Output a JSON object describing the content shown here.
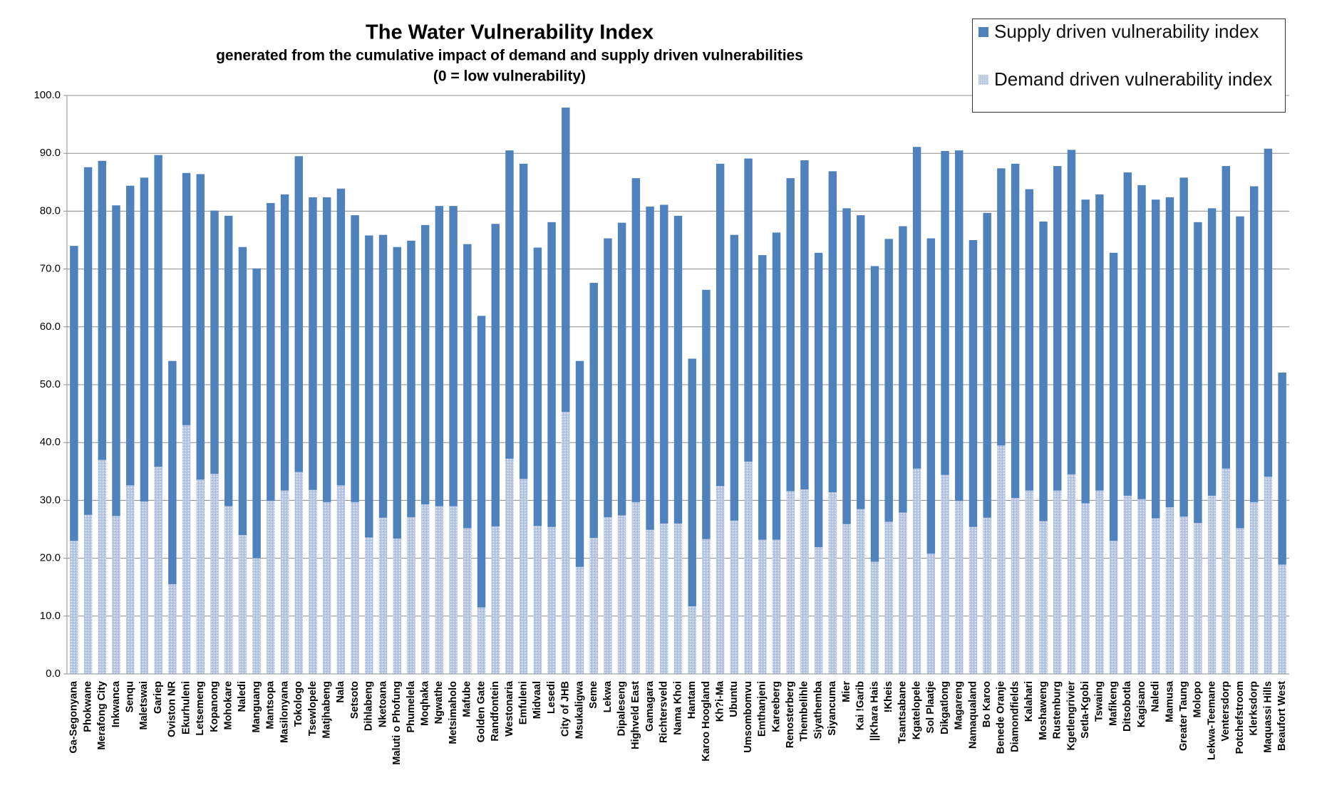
{
  "chart_data": {
    "type": "stacked_bar",
    "title": "The Water Vulnerability Index",
    "subtitle": "generated from the cumulative impact of demand and supply driven vulnerabilities",
    "note": "(0 = low vulnerability)",
    "categories": [
      "Ga-Segonyana",
      "Phokwane",
      "Merafong City",
      "Inkwanca",
      "Senqu",
      "Maletswai",
      "Gariep",
      "Oviston NR",
      "Ekurhuleni",
      "Letsemeng",
      "Kopanong",
      "Mohokare",
      "Naledi",
      "Manguang",
      "Mantsopa",
      "Masilonyana",
      "Tokologo",
      "Tsewlopele",
      "Matjhabeng",
      "Nala",
      "Setsoto",
      "Dihlabeng",
      "Nketoana",
      "Maluti o Phofung",
      "Phumelela",
      "Moqhaka",
      "Ngwathe",
      "Metsimaholo",
      "Mafube",
      "Golden Gate",
      "Randfontein",
      "Westonaria",
      "Emfuleni",
      "Midvaal",
      "Lesedi",
      "City of JHB",
      "Msukaligwa",
      "Seme",
      "Lekwa",
      "Dipaleseng",
      "Highveld East",
      "Gamagara",
      "Richtersveld",
      "Nama Khoi",
      "Hantam",
      "Karoo Hoogland",
      "Kh?i-Ma",
      "Ubuntu",
      "Umsombomvu",
      "Emthanjeni",
      "Kareeberg",
      "Renosterberg",
      "Thembelihle",
      "Siyathemba",
      "Siyancuma",
      "Mier",
      "Kai !Garib",
      "||Khara Hais",
      "!Kheis",
      "Tsantsabane",
      "Kgatelopele",
      "Sol Plaatje",
      "Dikgatlong",
      "Magareng",
      "Namaqualand",
      "Bo Karoo",
      "Benede Oranje",
      "Diamondfields",
      "Kalahari",
      "Moshaweng",
      "Rustenburg",
      "Kgetlengrivier",
      "Setla-Kgobi",
      "Tswaing",
      "Mafikeng",
      "Ditsobotla",
      "Kagisano",
      "Naledi",
      "Mamusa",
      "Greater Taung",
      "Molopo",
      "Lekwa-Teemane",
      "Ventersdorp",
      "Potchefstroom",
      "Klerksdorp",
      "Maquassi Hills",
      "Beaufort West"
    ],
    "series": [
      {
        "name": "Supply driven vulnerability index",
        "color": "#4f81bd",
        "values": [
          51.0,
          60.1,
          51.7,
          53.7,
          51.8,
          56.0,
          53.9,
          38.6,
          43.6,
          52.8,
          45.5,
          50.2,
          49.8,
          50.1,
          51.5,
          51.2,
          54.6,
          50.6,
          52.7,
          51.3,
          49.6,
          52.2,
          48.9,
          50.4,
          47.8,
          48.3,
          51.9,
          51.9,
          49.1,
          50.4,
          52.3,
          53.3,
          54.5,
          48.1,
          52.7,
          52.6,
          35.6,
          44.1,
          48.2,
          50.6,
          56.0,
          55.9,
          55.1,
          53.2,
          42.8,
          43.1,
          55.7,
          49.4,
          52.4,
          49.2,
          53.1,
          54.1,
          56.9,
          50.9,
          55.5,
          54.6,
          50.8,
          51.1,
          48.9,
          49.5,
          55.6,
          54.5,
          56.0,
          60.6,
          49.6,
          52.7,
          47.9,
          57.8,
          52.1,
          51.8,
          56.1,
          56.1,
          52.5,
          51.2,
          49.8,
          55.9,
          54.3,
          55.1,
          53.6,
          58.6,
          52.0,
          49.7,
          52.3,
          53.9,
          54.6,
          56.7,
          33.2
        ]
      },
      {
        "name": "Demand driven vulnerability index",
        "color": "#b9c9e6",
        "values": [
          23.0,
          27.5,
          37.0,
          27.3,
          32.6,
          29.8,
          35.8,
          15.5,
          43.0,
          33.6,
          34.6,
          29.0,
          24.0,
          20.0,
          29.9,
          31.7,
          34.9,
          31.8,
          29.7,
          32.6,
          29.7,
          23.6,
          27.0,
          23.4,
          27.1,
          29.3,
          29.0,
          29.0,
          25.2,
          11.5,
          25.5,
          37.2,
          33.7,
          25.6,
          25.4,
          45.3,
          18.5,
          23.5,
          27.1,
          27.4,
          29.7,
          24.9,
          26.0,
          26.0,
          11.7,
          23.3,
          32.5,
          26.5,
          36.7,
          23.2,
          23.2,
          31.6,
          31.9,
          21.9,
          31.4,
          25.9,
          28.5,
          19.4,
          26.3,
          27.9,
          35.5,
          20.8,
          34.4,
          29.9,
          25.4,
          27.0,
          39.5,
          30.4,
          31.7,
          26.4,
          31.7,
          34.5,
          29.5,
          31.7,
          23.0,
          30.8,
          30.2,
          26.9,
          28.8,
          27.2,
          26.1,
          30.8,
          35.5,
          25.2,
          29.7,
          34.1,
          18.9
        ]
      }
    ],
    "stack_order": [
      "Demand driven vulnerability index",
      "Supply driven vulnerability index"
    ],
    "ylim": [
      0,
      100
    ],
    "yticks": [
      {
        "value": 0,
        "label": "0.0"
      },
      {
        "value": 10,
        "label": "10.0"
      },
      {
        "value": 20,
        "label": "20.0"
      },
      {
        "value": 30,
        "label": "30.0"
      },
      {
        "value": 40,
        "label": "40.0"
      },
      {
        "value": 50,
        "label": "50.0"
      },
      {
        "value": 60,
        "label": "60.0"
      },
      {
        "value": 70,
        "label": "70.0"
      },
      {
        "value": 80,
        "label": "80.0"
      },
      {
        "value": 90,
        "label": "90.0"
      },
      {
        "value": 100,
        "label": "100.0"
      }
    ],
    "grid": true,
    "legend": "top-right"
  }
}
